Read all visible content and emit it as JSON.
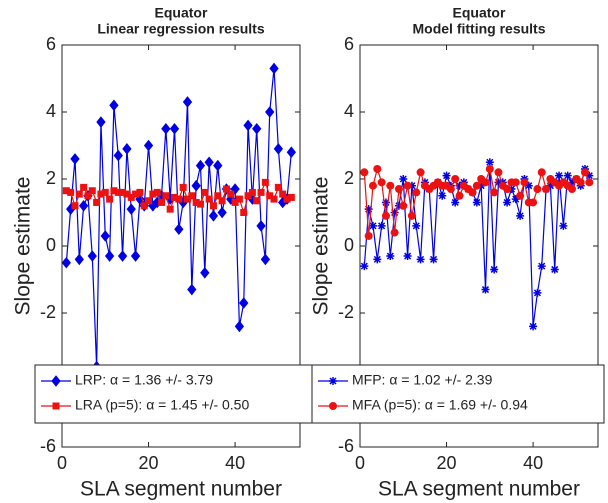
{
  "chart_data": [
    {
      "type": "line",
      "title": "Equator",
      "subtitle": "Linear regression results",
      "xlabel": "SLA segment number",
      "ylabel": "Slope estimate",
      "xlim": [
        0,
        55
      ],
      "ylim": [
        -6,
        6
      ],
      "xticks": [
        0,
        20,
        40
      ],
      "yticks": [
        -6,
        -4,
        -2,
        0,
        2,
        4,
        6
      ],
      "legend": "lower center",
      "x": [
        1,
        2,
        3,
        4,
        5,
        6,
        7,
        8,
        9,
        10,
        11,
        12,
        13,
        14,
        15,
        16,
        17,
        18,
        19,
        20,
        21,
        22,
        23,
        24,
        25,
        26,
        27,
        28,
        29,
        30,
        31,
        32,
        33,
        34,
        35,
        36,
        37,
        38,
        39,
        40,
        41,
        42,
        43,
        44,
        45,
        46,
        47,
        48,
        49,
        50,
        51,
        52,
        53
      ],
      "series": [
        {
          "name": "LRP: α = 1.36 +/- 3.79",
          "color": "#0000e6",
          "marker": "diamond",
          "values": [
            -0.5,
            1.1,
            2.6,
            -0.4,
            1.2,
            1.5,
            -0.3,
            -3.6,
            3.7,
            0.3,
            -0.3,
            4.2,
            2.7,
            -0.3,
            2.9,
            1.1,
            -0.3,
            1.4,
            1.2,
            3.0,
            1.2,
            1.3,
            1.5,
            3.5,
            1.4,
            3.5,
            0.5,
            1.3,
            4.3,
            -1.3,
            1.8,
            2.4,
            -0.8,
            2.5,
            0.9,
            2.4,
            1.0,
            1.7,
            1.4,
            1.7,
            -2.4,
            -1.7,
            3.6,
            1.4,
            3.5,
            0.6,
            -0.4,
            4.0,
            5.3,
            2.9,
            1.3,
            1.4,
            2.8
          ]
        },
        {
          "name": "LRA (p=5): α = 1.45 +/- 0.50",
          "color": "#ee1111",
          "marker": "square",
          "values": [
            1.65,
            1.6,
            1.2,
            1.55,
            1.75,
            1.5,
            1.65,
            1.3,
            1.55,
            1.6,
            1.4,
            1.65,
            1.6,
            1.6,
            1.55,
            1.45,
            1.55,
            1.6,
            1.2,
            1.35,
            1.55,
            1.6,
            1.3,
            1.5,
            1.1,
            1.45,
            1.4,
            1.75,
            1.4,
            1.5,
            1.3,
            1.25,
            1.6,
            1.4,
            1.2,
            1.5,
            1.35,
            1.7,
            1.55,
            1.3,
            1.4,
            1.0,
            1.5,
            1.6,
            1.35,
            1.6,
            1.9,
            1.5,
            1.4,
            1.75,
            1.55,
            1.4,
            1.45
          ]
        }
      ]
    },
    {
      "type": "line",
      "title": "Equator",
      "subtitle": "Model fitting results",
      "xlabel": "SLA segment number",
      "ylabel": "Slope estimate",
      "xlim": [
        0,
        55
      ],
      "ylim": [
        -6,
        6
      ],
      "xticks": [
        0,
        20,
        40
      ],
      "yticks": [
        -6,
        -4,
        -2,
        0,
        2,
        4,
        6
      ],
      "legend": "lower center",
      "x": [
        1,
        2,
        3,
        4,
        5,
        6,
        7,
        8,
        9,
        10,
        11,
        12,
        13,
        14,
        15,
        16,
        17,
        18,
        19,
        20,
        21,
        22,
        23,
        24,
        25,
        26,
        27,
        28,
        29,
        30,
        31,
        32,
        33,
        34,
        35,
        36,
        37,
        38,
        39,
        40,
        41,
        42,
        43,
        44,
        45,
        46,
        47,
        48,
        49,
        50,
        51,
        52,
        53
      ],
      "series": [
        {
          "name": "MFP: α = 1.02 +/- 2.39",
          "color": "#0000e6",
          "marker": "asterisk",
          "values": [
            -0.6,
            1.1,
            0.6,
            -0.4,
            0.6,
            1.3,
            -0.3,
            1.0,
            1.2,
            2.0,
            -0.3,
            1.8,
            0.6,
            -0.4,
            1.9,
            1.7,
            -0.4,
            1.9,
            1.5,
            2.1,
            1.8,
            1.3,
            1.8,
            1.9,
            1.7,
            1.6,
            1.3,
            1.8,
            -1.3,
            2.5,
            -0.7,
            1.9,
            1.9,
            1.3,
            1.7,
            1.4,
            0.9,
            2.0,
            1.8,
            -2.4,
            -1.4,
            -0.6,
            1.7,
            1.8,
            -0.7,
            2.1,
            0.6,
            2.1,
            1.9,
            2.0,
            1.8,
            2.3,
            2.1
          ]
        },
        {
          "name": "MFA (p=5): α = 1.69 +/- 0.94",
          "color": "#ee1111",
          "marker": "circle",
          "values": [
            2.2,
            0.3,
            1.8,
            2.3,
            1.9,
            0.9,
            1.8,
            0.4,
            1.7,
            1.2,
            1.8,
            0.9,
            1.6,
            2.2,
            1.8,
            1.7,
            1.8,
            1.9,
            1.8,
            1.8,
            1.7,
            2.0,
            1.5,
            1.8,
            1.7,
            1.6,
            1.8,
            2.0,
            1.9,
            2.3,
            1.6,
            2.2,
            1.8,
            1.7,
            1.9,
            1.9,
            1.5,
            1.9,
            1.3,
            1.3,
            1.7,
            2.2,
            1.7,
            2.0,
            1.9,
            1.8,
            1.9,
            1.8,
            1.7,
            2.0,
            1.9,
            2.2,
            1.9
          ]
        }
      ]
    }
  ]
}
